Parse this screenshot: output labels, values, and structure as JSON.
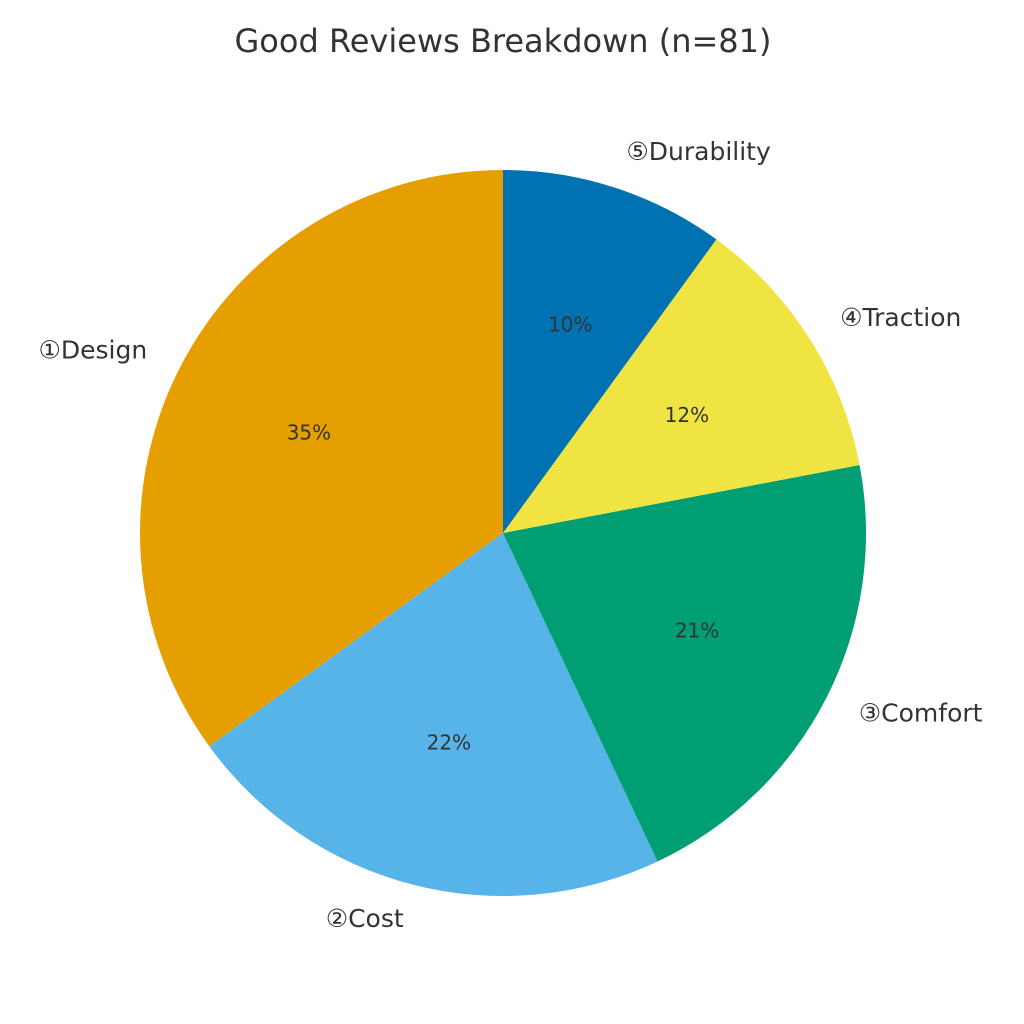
{
  "chart_data": {
    "type": "pie",
    "title": "Good Reviews Breakdown (n=81)",
    "categories": [
      "①Design",
      "②Cost",
      "③Comfort",
      "④Traction",
      "⑤Durability"
    ],
    "values": [
      35,
      22,
      21,
      12,
      10
    ],
    "value_labels": [
      "35%",
      "22%",
      "21%",
      "12%",
      "10%"
    ],
    "colors": [
      "#e69f00",
      "#56b4e9",
      "#009e73",
      "#f0e442",
      "#0072b2"
    ]
  }
}
